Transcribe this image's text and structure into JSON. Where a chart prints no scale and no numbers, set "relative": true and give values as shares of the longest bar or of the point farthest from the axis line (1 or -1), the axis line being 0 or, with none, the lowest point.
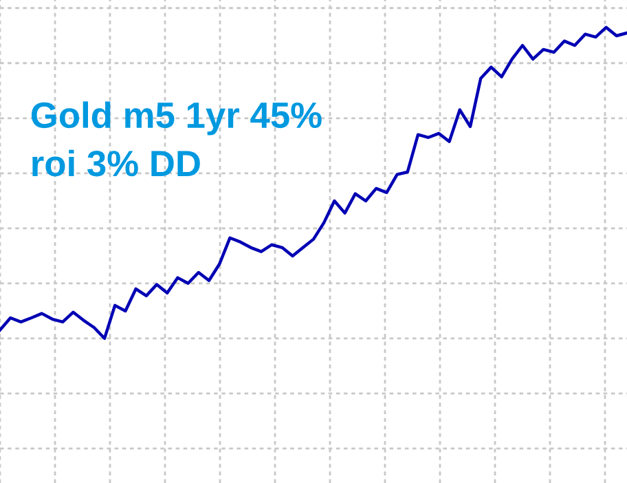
{
  "chart_data": {
    "type": "line",
    "relative": true,
    "grid": true,
    "annotations": [
      "Gold m5 1yr 45%\nroi 3% DD"
    ],
    "categories": [
      null,
      null,
      null,
      null,
      null,
      null,
      null,
      null,
      null,
      null,
      null,
      null,
      null,
      null,
      null,
      null,
      null,
      null,
      null,
      null,
      null,
      null,
      null,
      null,
      null,
      null,
      null,
      null,
      null,
      null,
      null,
      null,
      null,
      null,
      null,
      null,
      null,
      null,
      null,
      null,
      null,
      null,
      null,
      null,
      null,
      null,
      null,
      null,
      null,
      null,
      null,
      null,
      null,
      null,
      null,
      null,
      null,
      null,
      null,
      null,
      null
    ],
    "series": [
      {
        "color": "#0000b4",
        "values": [
          0.027,
          0.066,
          0.053,
          0.066,
          0.08,
          0.062,
          0.053,
          0.084,
          0.058,
          0.035,
          0,
          0.106,
          0.088,
          0.159,
          0.137,
          0.173,
          0.146,
          0.195,
          0.177,
          0.212,
          0.186,
          0.239,
          0.323,
          0.31,
          0.292,
          0.279,
          0.301,
          0.292,
          0.265,
          0.292,
          0.319,
          0.372,
          0.442,
          0.403,
          0.465,
          0.442,
          0.482,
          0.469,
          0.527,
          0.535,
          0.655,
          0.646,
          0.659,
          0.633,
          0.735,
          0.681,
          0.836,
          0.872,
          0.841,
          0.898,
          0.942,
          0.898,
          0.929,
          0.92,
          0.956,
          0.942,
          0.978,
          0.969,
          1,
          0.973,
          0.982
        ]
      }
    ]
  }
}
